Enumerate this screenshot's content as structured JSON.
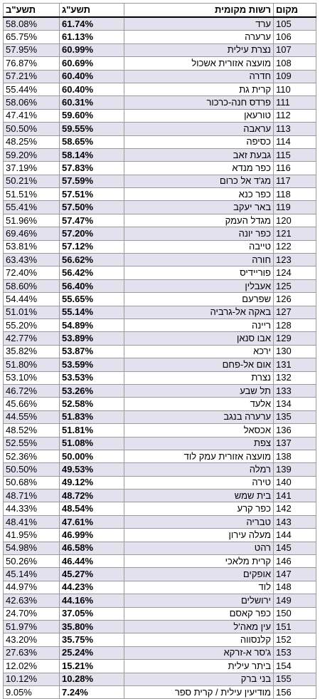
{
  "headers": {
    "rank": "מקום",
    "name": "רשות מקומית",
    "current": "תשע\"ג",
    "previous": "תשע\"ב"
  },
  "rows": [
    {
      "rank": "105",
      "name": "ערד",
      "current": "61.74%",
      "previous": "58.08%"
    },
    {
      "rank": "106",
      "name": "ערערה",
      "current": "61.13%",
      "previous": "65.75%"
    },
    {
      "rank": "107",
      "name": "נצרת עילית",
      "current": "60.99%",
      "previous": "57.95%"
    },
    {
      "rank": "108",
      "name": "מועצה אזורית אשכול",
      "current": "60.69%",
      "previous": "76.87%"
    },
    {
      "rank": "109",
      "name": "חדרה",
      "current": "60.40%",
      "previous": "57.21%"
    },
    {
      "rank": "110",
      "name": "קרית גת",
      "current": "60.40%",
      "previous": "55.44%"
    },
    {
      "rank": "111",
      "name": "פרדס חנה-כרכור",
      "current": "60.31%",
      "previous": "58.06%"
    },
    {
      "rank": "112",
      "name": "טורעאן",
      "current": "59.60%",
      "previous": "47.41%"
    },
    {
      "rank": "113",
      "name": "עראבה",
      "current": "59.55%",
      "previous": "50.50%"
    },
    {
      "rank": "114",
      "name": "כסיפה",
      "current": "58.65%",
      "previous": "48.25%"
    },
    {
      "rank": "115",
      "name": "גבעת זאב",
      "current": "58.14%",
      "previous": "59.20%"
    },
    {
      "rank": "116",
      "name": "כפר מנדא",
      "current": "57.83%",
      "previous": "37.19%"
    },
    {
      "rank": "117",
      "name": "מג'ד אל כרום",
      "current": "57.59%",
      "previous": "50.21%"
    },
    {
      "rank": "118",
      "name": "כפר כנא",
      "current": "57.51%",
      "previous": "51.51%"
    },
    {
      "rank": "119",
      "name": "באר יעקב",
      "current": "57.50%",
      "previous": "55.41%"
    },
    {
      "rank": "120",
      "name": "מגדל העמק",
      "current": "57.47%",
      "previous": "51.96%"
    },
    {
      "rank": "121",
      "name": "כפר יונה",
      "current": "57.20%",
      "previous": "69.46%"
    },
    {
      "rank": "122",
      "name": "טייבה",
      "current": "57.12%",
      "previous": "53.81%"
    },
    {
      "rank": "123",
      "name": "חורה",
      "current": "56.62%",
      "previous": "63.43%"
    },
    {
      "rank": "124",
      "name": "פוריידיס",
      "current": "56.42%",
      "previous": "72.40%"
    },
    {
      "rank": "125",
      "name": "אעבלין",
      "current": "56.40%",
      "previous": "58.60%"
    },
    {
      "rank": "126",
      "name": "שפרעם",
      "current": "55.65%",
      "previous": "54.44%"
    },
    {
      "rank": "127",
      "name": "באקה אל-גרביה",
      "current": "55.14%",
      "previous": "51.01%"
    },
    {
      "rank": "128",
      "name": "ריינה",
      "current": "54.89%",
      "previous": "55.20%"
    },
    {
      "rank": "129",
      "name": "אבו סנאן",
      "current": "53.89%",
      "previous": "42.77%"
    },
    {
      "rank": "130",
      "name": "ירכא",
      "current": "53.87%",
      "previous": "35.82%"
    },
    {
      "rank": "131",
      "name": "אום אל-פחם",
      "current": "53.59%",
      "previous": "51.80%"
    },
    {
      "rank": "132",
      "name": "נצרת",
      "current": "53.53%",
      "previous": "53.10%"
    },
    {
      "rank": "133",
      "name": "תל שבע",
      "current": "53.26%",
      "previous": "46.72%"
    },
    {
      "rank": "134",
      "name": "אלעד",
      "current": "52.58%",
      "previous": "45.66%"
    },
    {
      "rank": "135",
      "name": "ערערה בנגב",
      "current": "51.83%",
      "previous": "44.55%"
    },
    {
      "rank": "136",
      "name": "אכסאל",
      "current": "51.81%",
      "previous": "48.52%"
    },
    {
      "rank": "137",
      "name": "צפת",
      "current": "51.08%",
      "previous": "52.55%"
    },
    {
      "rank": "138",
      "name": "מועצה אזורית עמק לוד",
      "current": "50.00%",
      "previous": "52.36%"
    },
    {
      "rank": "139",
      "name": "רמלה",
      "current": "49.53%",
      "previous": "50.50%"
    },
    {
      "rank": "140",
      "name": "טירה",
      "current": "49.12%",
      "previous": "50.68%"
    },
    {
      "rank": "141",
      "name": "בית שמש",
      "current": "48.72%",
      "previous": "48.71%"
    },
    {
      "rank": "142",
      "name": "כפר קרע",
      "current": "48.54%",
      "previous": "44.33%"
    },
    {
      "rank": "143",
      "name": "טבריה",
      "current": "47.61%",
      "previous": "48.41%"
    },
    {
      "rank": "144",
      "name": "מעלה עירון",
      "current": "46.99%",
      "previous": "41.95%"
    },
    {
      "rank": "145",
      "name": "רהט",
      "current": "46.58%",
      "previous": "54.98%"
    },
    {
      "rank": "146",
      "name": "קרית מלאכי",
      "current": "46.44%",
      "previous": "50.26%"
    },
    {
      "rank": "147",
      "name": "אופקים",
      "current": "45.27%",
      "previous": "45.14%"
    },
    {
      "rank": "148",
      "name": "לוד",
      "current": "44.23%",
      "previous": "44.97%"
    },
    {
      "rank": "149",
      "name": "ירושלים",
      "current": "44.16%",
      "previous": "42.63%"
    },
    {
      "rank": "150",
      "name": "כפר קאסם",
      "current": "37.05%",
      "previous": "24.70%"
    },
    {
      "rank": "151",
      "name": "עין מאה'ל",
      "current": "35.80%",
      "previous": "51.97%"
    },
    {
      "rank": "152",
      "name": "קלנסווה",
      "current": "35.75%",
      "previous": "43.20%"
    },
    {
      "rank": "153",
      "name": "ג'סר א-זרקא",
      "current": "25.24%",
      "previous": "27.63%"
    },
    {
      "rank": "154",
      "name": "ביתר עילית",
      "current": "15.21%",
      "previous": "12.02%"
    },
    {
      "rank": "155",
      "name": "בני ברק",
      "current": "10.28%",
      "previous": "10.12%"
    },
    {
      "rank": "156",
      "name": "מודיעין עילית / קרית ספר",
      "current": "7.24%",
      "previous": "9.05%"
    }
  ]
}
